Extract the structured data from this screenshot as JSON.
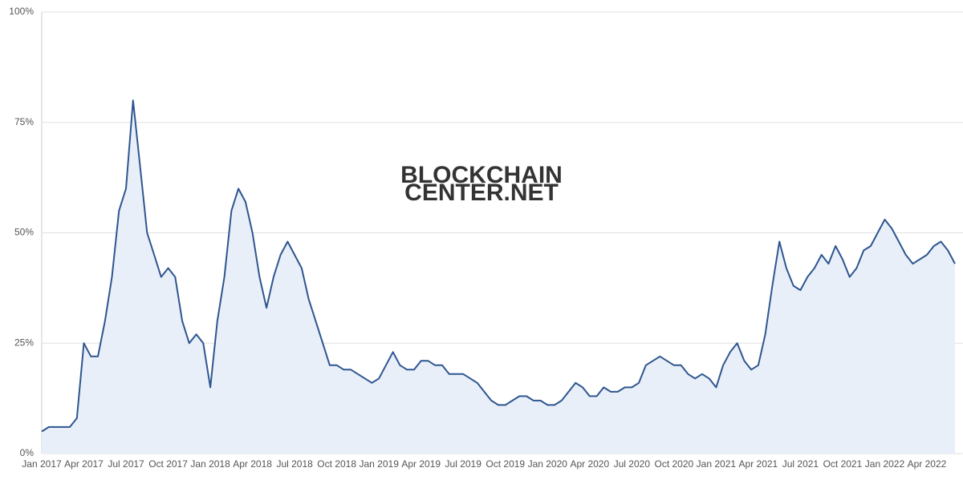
{
  "chart_data": {
    "type": "area",
    "watermark": [
      "BLOCKCHAIN",
      "CENTER.NET"
    ],
    "categories": [
      "Jan 2017",
      null,
      null,
      null,
      null,
      null,
      "Apr 2017",
      null,
      null,
      null,
      null,
      null,
      "Jul 2017",
      null,
      null,
      null,
      null,
      null,
      "Oct 2017",
      null,
      null,
      null,
      null,
      null,
      "Jan 2018",
      null,
      null,
      null,
      null,
      null,
      "Apr 2018",
      null,
      null,
      null,
      null,
      null,
      "Jul 2018",
      null,
      null,
      null,
      null,
      null,
      "Oct 2018",
      null,
      null,
      null,
      null,
      null,
      "Jan 2019",
      null,
      null,
      null,
      null,
      null,
      "Apr 2019",
      null,
      null,
      null,
      null,
      null,
      "Jul 2019",
      null,
      null,
      null,
      null,
      null,
      "Oct 2019",
      null,
      null,
      null,
      null,
      null,
      "Jan 2020",
      null,
      null,
      null,
      null,
      null,
      "Apr 2020",
      null,
      null,
      null,
      null,
      null,
      "Jul 2020",
      null,
      null,
      null,
      null,
      null,
      "Oct 2020",
      null,
      null,
      null,
      null,
      null,
      "Jan 2021",
      null,
      null,
      null,
      null,
      null,
      "Apr 2021",
      null,
      null,
      null,
      null,
      null,
      "Jul 2021",
      null,
      null,
      null,
      null,
      null,
      "Oct 2021",
      null,
      null,
      null,
      null,
      null,
      "Jan 2022",
      null,
      null,
      null,
      null,
      null,
      "Apr 2022",
      null,
      null,
      null,
      null
    ],
    "series": [
      {
        "color": "#2e5590",
        "fill": "#e9eff8",
        "values": [
          5,
          6,
          6,
          6,
          6,
          8,
          25,
          22,
          22,
          30,
          40,
          55,
          60,
          80,
          65,
          50,
          45,
          40,
          42,
          40,
          30,
          25,
          27,
          25,
          15,
          30,
          40,
          55,
          60,
          57,
          50,
          40,
          33,
          40,
          45,
          48,
          45,
          42,
          35,
          30,
          25,
          20,
          20,
          19,
          19,
          18,
          17,
          16,
          17,
          20,
          23,
          20,
          19,
          19,
          21,
          21,
          20,
          20,
          18,
          18,
          18,
          17,
          16,
          14,
          12,
          11,
          11,
          12,
          13,
          13,
          12,
          12,
          11,
          11,
          12,
          14,
          16,
          15,
          13,
          13,
          15,
          14,
          14,
          15,
          15,
          16,
          20,
          21,
          22,
          21,
          20,
          20,
          18,
          17,
          18,
          17,
          15,
          20,
          23,
          25,
          21,
          19,
          20,
          27,
          38,
          48,
          42,
          38,
          37,
          40,
          42,
          45,
          43,
          47,
          44,
          40,
          42,
          46,
          47,
          50,
          53,
          51,
          48,
          45,
          43,
          44,
          45,
          47,
          48,
          46,
          43
        ]
      }
    ],
    "ylim": [
      0,
      100
    ],
    "yticks": [
      {
        "value": 0,
        "label": "0%"
      },
      {
        "value": 25,
        "label": "25%"
      },
      {
        "value": 50,
        "label": "50%"
      },
      {
        "value": 75,
        "label": "75%"
      },
      {
        "value": 100,
        "label": "100%"
      }
    ],
    "grid": true
  }
}
